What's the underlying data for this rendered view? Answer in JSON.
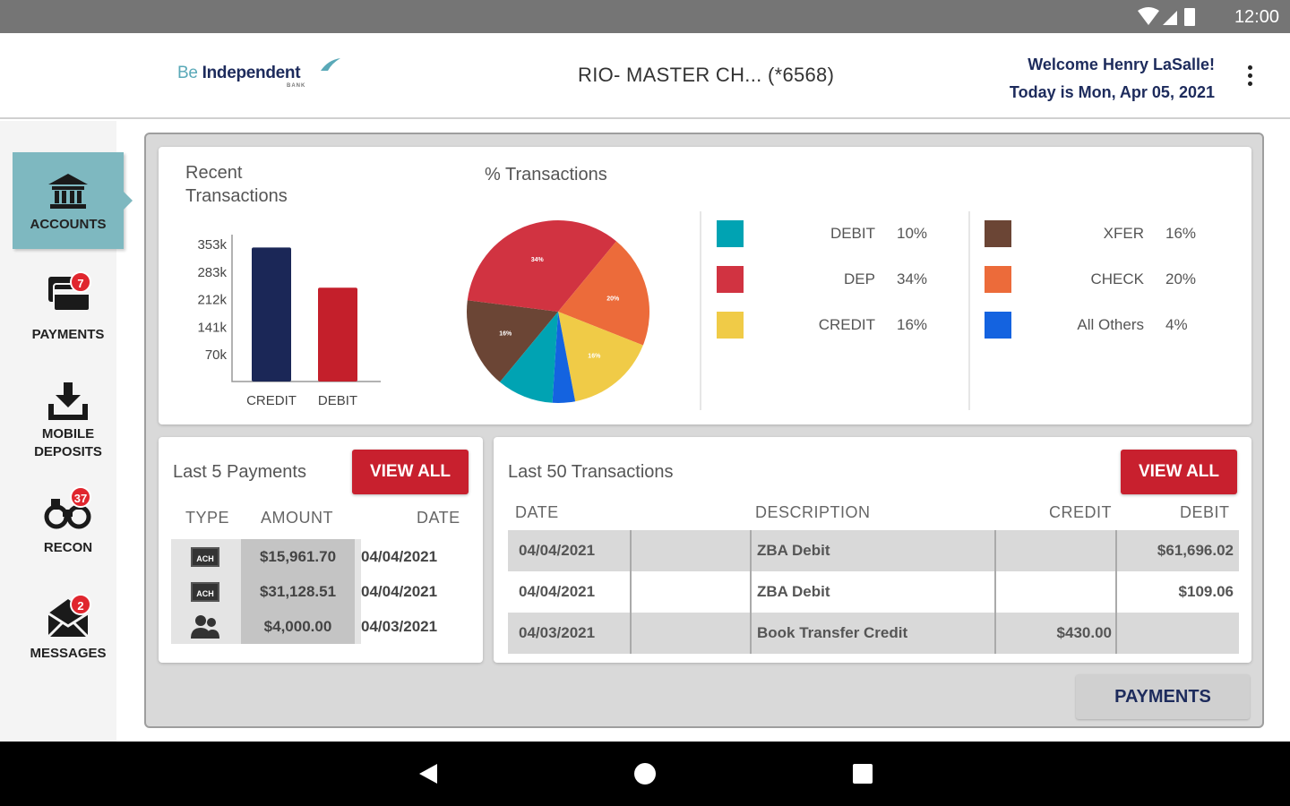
{
  "status_bar": {
    "time": "12:00"
  },
  "header": {
    "logo_be": "Be",
    "logo_independent": "Independent",
    "logo_bank": "BANK",
    "account_title": "RIO- MASTER CH...  (*6568)",
    "welcome_line": "Welcome Henry LaSalle!",
    "date_line": "Today is Mon, Apr 05, 2021"
  },
  "sidebar": {
    "items": [
      {
        "label": "ACCOUNTS",
        "badge": ""
      },
      {
        "label": "PAYMENTS",
        "badge": "7"
      },
      {
        "label_line1": "MOBILE",
        "label_line2": "DEPOSITS",
        "badge": ""
      },
      {
        "label": "RECON",
        "badge": "37"
      },
      {
        "label": "MESSAGES",
        "badge": "2"
      }
    ]
  },
  "recent_chart": {
    "title_line1": "Recent",
    "title_line2": "Transactions"
  },
  "pie_title": "% Transactions",
  "chart_data": [
    {
      "type": "bar",
      "title": "Recent Transactions",
      "categories": [
        "CREDIT",
        "DEBIT"
      ],
      "values": [
        343,
        240
      ],
      "unit": "k",
      "yticks": [
        "353k",
        "283k",
        "212k",
        "141k",
        "70k"
      ],
      "ylim": [
        0,
        353
      ],
      "colors": [
        "#1b2757",
        "#c41f2b"
      ]
    },
    {
      "type": "pie",
      "title": "% Transactions",
      "slices": [
        {
          "name": "XFER",
          "value": 16,
          "color": "#6b4535"
        },
        {
          "name": "DEP",
          "value": 34,
          "color": "#d13341"
        },
        {
          "name": "CHECK",
          "value": 20,
          "color": "#ec6b3a"
        },
        {
          "name": "CREDIT",
          "value": 16,
          "color": "#f0cb47"
        },
        {
          "name": "All Others",
          "value": 4,
          "color": "#1463e0"
        },
        {
          "name": "DEBIT",
          "value": 10,
          "color": "#00a3b3"
        }
      ]
    }
  ],
  "legend": {
    "left": [
      {
        "name": "DEBIT",
        "pct": "10%",
        "color": "#00a3b3"
      },
      {
        "name": "DEP",
        "pct": "34%",
        "color": "#d13341"
      },
      {
        "name": "CREDIT",
        "pct": "16%",
        "color": "#f0cb47"
      }
    ],
    "right": [
      {
        "name": "XFER",
        "pct": "16%",
        "color": "#6b4535"
      },
      {
        "name": "CHECK",
        "pct": "20%",
        "color": "#ec6b3a"
      },
      {
        "name": "All Others",
        "pct": "4%",
        "color": "#1463e0"
      }
    ]
  },
  "payments_card": {
    "title": "Last 5 Payments",
    "view_all": "VIEW ALL",
    "columns": [
      "TYPE",
      "AMOUNT",
      "DATE"
    ],
    "rows": [
      {
        "type": "ACH",
        "amount": "$15,961.70",
        "date": "04/04/2021"
      },
      {
        "type": "ACH",
        "amount": "$31,128.51",
        "date": "04/04/2021"
      },
      {
        "type": "people",
        "amount": "$4,000.00",
        "date": "04/03/2021"
      }
    ]
  },
  "transactions_card": {
    "title": "Last 50 Transactions",
    "view_all": "VIEW ALL",
    "columns": [
      "DATE",
      "DESCRIPTION",
      "CREDIT",
      "DEBIT"
    ],
    "rows": [
      {
        "date": "04/04/2021",
        "description": "ZBA Debit",
        "credit": "",
        "debit": "$61,696.02"
      },
      {
        "date": "04/04/2021",
        "description": "ZBA Debit",
        "credit": "",
        "debit": "$109.06"
      },
      {
        "date": "04/03/2021",
        "description": "Book Transfer Credit",
        "credit": "$430.00",
        "debit": ""
      }
    ]
  },
  "payments_button": "PAYMENTS"
}
